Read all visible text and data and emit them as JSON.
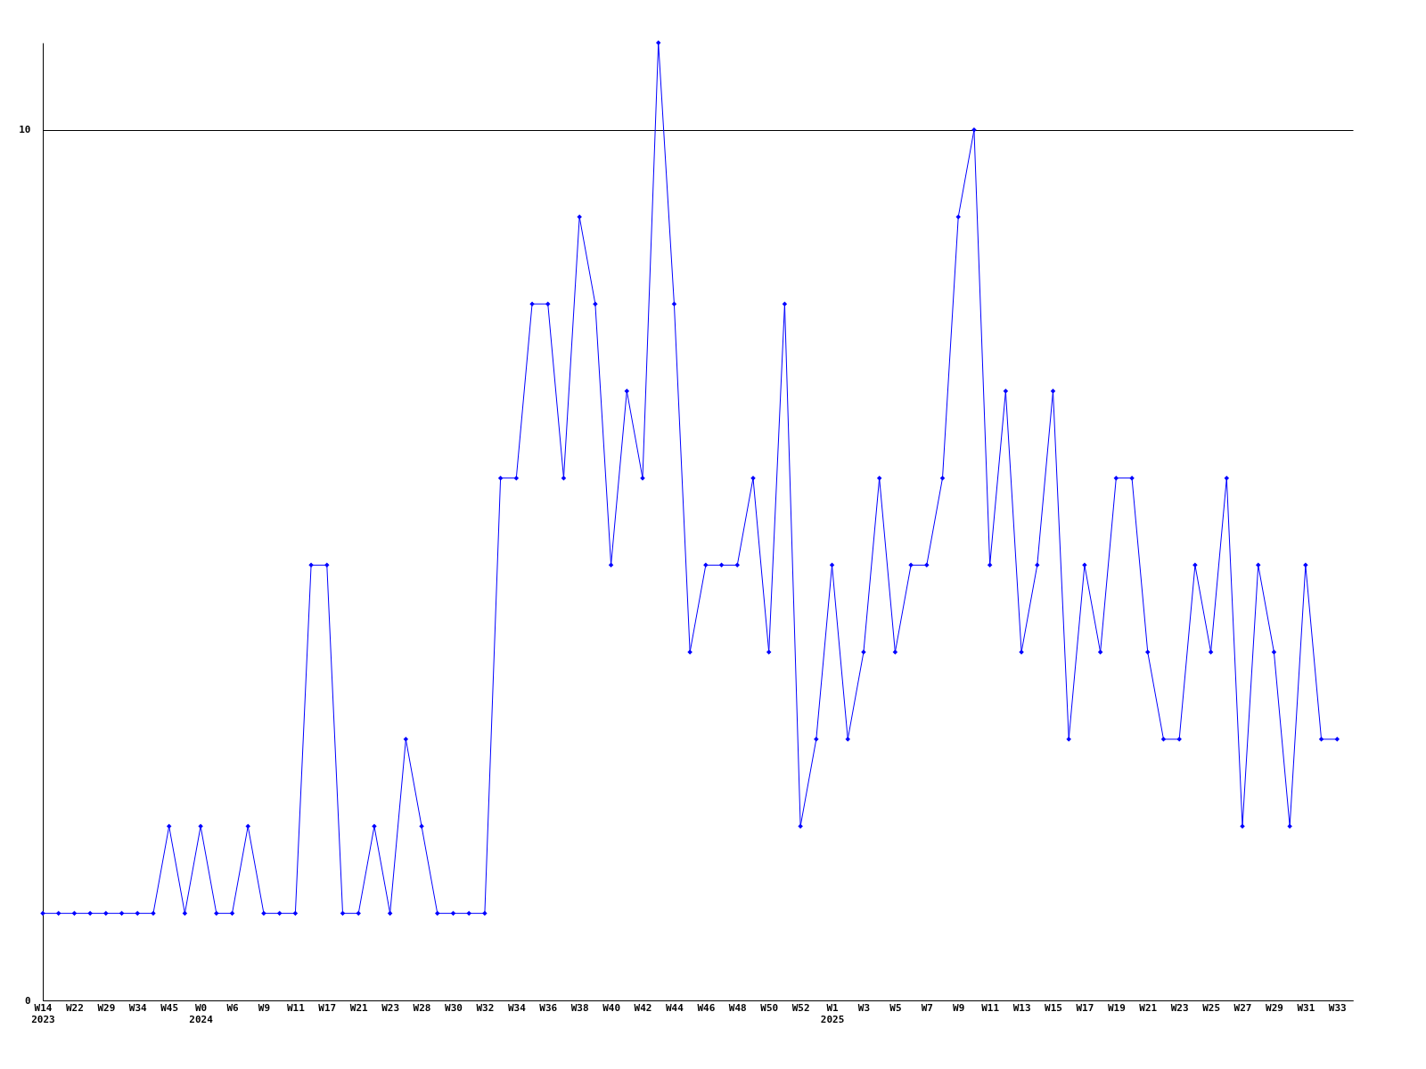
{
  "chart_data": {
    "type": "line",
    "categories": [
      "W14\n2023",
      null,
      "W22",
      null,
      "W29",
      null,
      "W34",
      null,
      "W45",
      null,
      "W0\n2024",
      null,
      "W6",
      null,
      "W9",
      null,
      "W11",
      null,
      "W17",
      null,
      "W21",
      null,
      "W23",
      null,
      "W28",
      null,
      "W30",
      null,
      "W32",
      null,
      "W34",
      null,
      "W36",
      null,
      "W38",
      null,
      "W40",
      null,
      "W42",
      null,
      "W44",
      null,
      "W46",
      null,
      "W48",
      null,
      "W50",
      null,
      "W52",
      null,
      "W1\n2025",
      null,
      "W3",
      null,
      "W5",
      null,
      "W7",
      null,
      "W9",
      null,
      "W11",
      null,
      "W13",
      null,
      "W15",
      null,
      "W17",
      null,
      "W19",
      null,
      "W21",
      null,
      "W23",
      null,
      "W25",
      null,
      "W27",
      null,
      "W29",
      null,
      "W31",
      null,
      "W33"
    ],
    "series": [
      {
        "color": "#0000ff",
        "values": [
          1,
          1,
          1,
          1,
          1,
          1,
          1,
          1,
          2,
          1,
          2,
          1,
          1,
          2,
          1,
          1,
          1,
          5,
          5,
          1,
          1,
          2,
          1,
          3,
          2,
          1,
          1,
          1,
          1,
          6,
          6,
          8,
          8,
          6,
          9,
          8,
          5,
          7,
          6,
          11,
          8,
          4,
          5,
          5,
          5,
          6,
          4,
          8,
          2,
          3,
          5,
          3,
          4,
          6,
          4,
          5,
          5,
          6,
          9,
          10,
          5,
          7,
          4,
          5,
          7,
          3,
          5,
          4,
          6,
          6,
          4,
          3,
          3,
          5,
          4,
          6,
          2,
          5,
          4,
          2,
          5,
          3,
          3
        ]
      }
    ],
    "ylim": [
      0,
      11
    ],
    "yticks": [
      0,
      10
    ],
    "grid": "y",
    "marker": "diamond",
    "line_style": "solid"
  }
}
